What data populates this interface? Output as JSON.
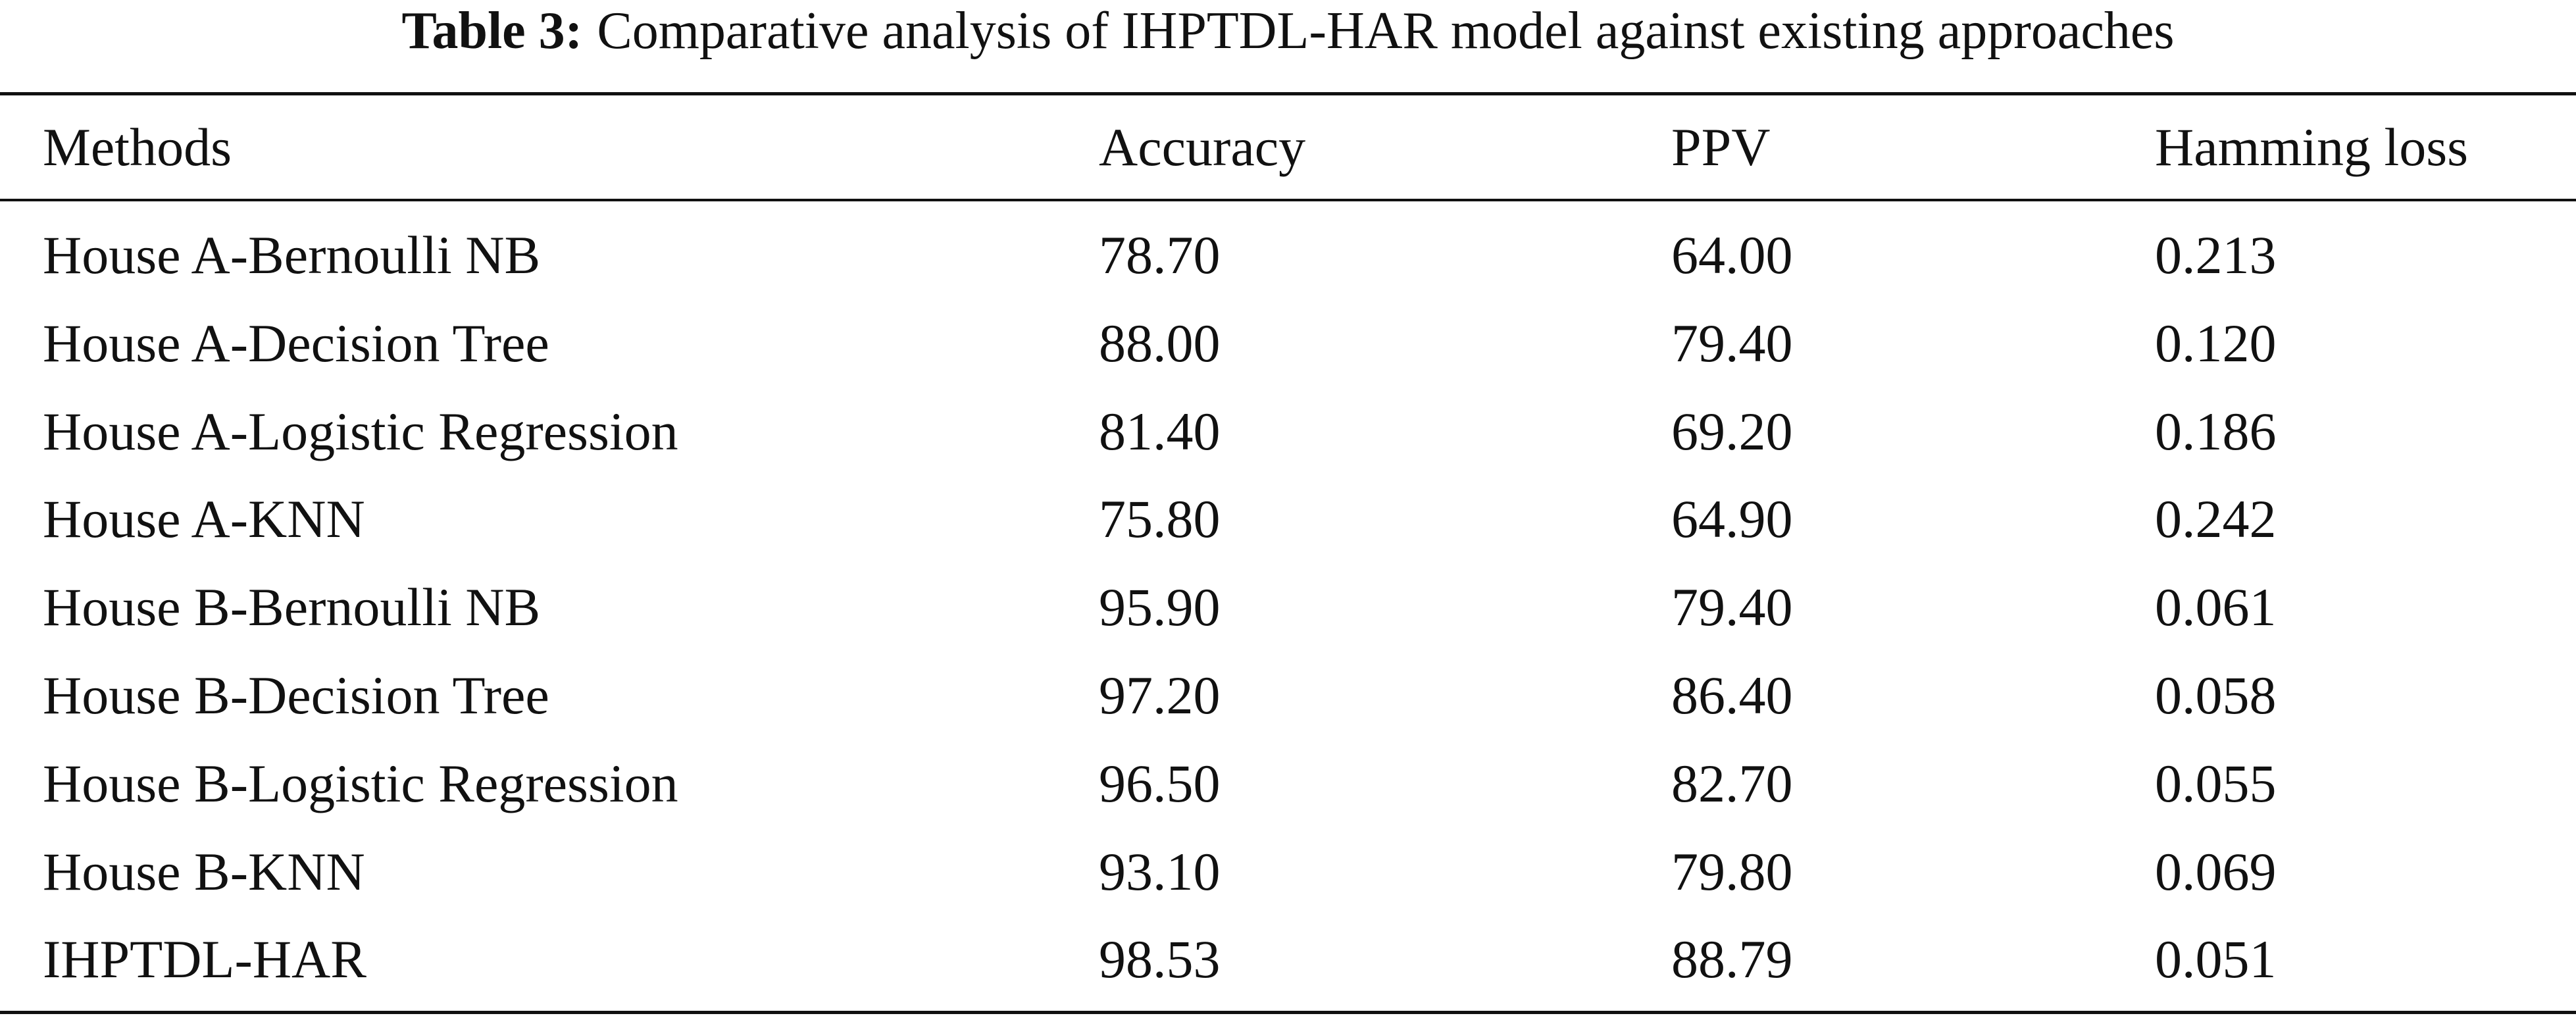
{
  "caption": {
    "label": "Table 3:",
    "text": "Comparative analysis of IHPTDL-HAR model against existing approaches"
  },
  "table": {
    "header": [
      "Methods",
      "Accuracy",
      "PPV",
      "Hamming loss"
    ],
    "rows": [
      [
        "House A-Bernoulli NB",
        "78.70",
        "64.00",
        "0.213"
      ],
      [
        "House A-Decision Tree",
        "88.00",
        "79.40",
        "0.120"
      ],
      [
        "House A-Logistic Regression",
        "81.40",
        "69.20",
        "0.186"
      ],
      [
        "House A-KNN",
        "75.80",
        "64.90",
        "0.242"
      ],
      [
        "House B-Bernoulli NB",
        "95.90",
        "79.40",
        "0.061"
      ],
      [
        "House B-Decision Tree",
        "97.20",
        "86.40",
        "0.058"
      ],
      [
        "House B-Logistic Regression",
        "96.50",
        "82.70",
        "0.055"
      ],
      [
        "House B-KNN",
        "93.10",
        "79.80",
        "0.069"
      ],
      [
        "IHPTDL-HAR",
        "98.53",
        "88.79",
        "0.051"
      ]
    ]
  }
}
